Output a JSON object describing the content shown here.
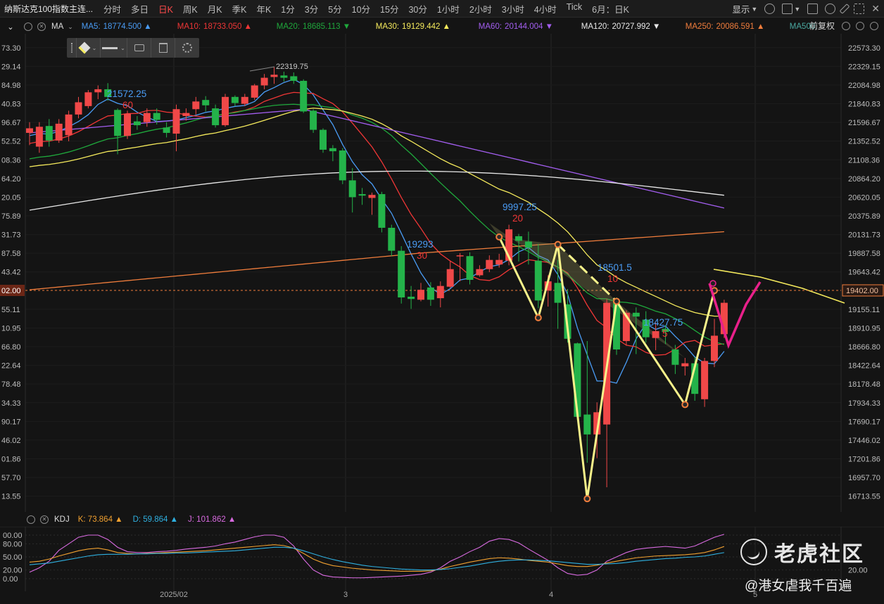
{
  "topbar": {
    "symbol": "纳斯达克100指数主连...",
    "periods": [
      "分时",
      "多日",
      "日K",
      "周K",
      "月K",
      "季K",
      "年K",
      "1分",
      "3分",
      "5分",
      "10分",
      "15分",
      "30分",
      "1小时",
      "2小时",
      "3小时",
      "4小时",
      "Tick",
      "6月：日K"
    ],
    "active_period": "日K",
    "display_label": "显示"
  },
  "ma_bar": {
    "indicator": "MA",
    "items": [
      {
        "label": "MA5:",
        "value": "18774.500",
        "arrow": "▲",
        "color": "#4a9cf5"
      },
      {
        "label": "MA10:",
        "value": "18733.050",
        "arrow": "▲",
        "color": "#ef3636"
      },
      {
        "label": "MA20:",
        "value": "18685.113",
        "arrow": "▼",
        "color": "#1fa83c"
      },
      {
        "label": "MA30:",
        "value": "19129.442",
        "arrow": "▲",
        "color": "#f5ea5c"
      },
      {
        "label": "MA60:",
        "value": "20144.004",
        "arrow": "▼",
        "color": "#a35ef0"
      },
      {
        "label": "MA120:",
        "value": "20727.992",
        "arrow": "▼",
        "color": "#e8e8e8"
      },
      {
        "label": "MA250:",
        "value": "20086.591",
        "arrow": "▲",
        "color": "#f07d3c"
      },
      {
        "label": "MA500:",
        "value": "",
        "arrow": "",
        "color": "#4aa8a0"
      }
    ],
    "adjust_label": "前复权"
  },
  "price_axis": {
    "right_labels": [
      "22573.30",
      "22329.15",
      "22084.98",
      "21840.83",
      "21596.67",
      "21352.52",
      "21108.36",
      "20864.20",
      "20620.05",
      "20375.89",
      "20131.73",
      "19887.58",
      "19643.42",
      "19155.11",
      "18910.95",
      "18666.80",
      "18422.64",
      "18178.48",
      "17934.33",
      "17690.17",
      "17446.02",
      "17201.86",
      "16957.70",
      "16713.55"
    ],
    "left_labels": [
      "73.30",
      "29.14",
      "84.98",
      "40.83",
      "96.67",
      "52.52",
      "08.36",
      "64.20",
      "20.05",
      "75.89",
      "31.73",
      "87.58",
      "43.42",
      "55.11",
      "10.95",
      "66.80",
      "22.64",
      "78.48",
      "34.33",
      "90.17",
      "46.02",
      "01.86",
      "57.70",
      "13.55"
    ],
    "current_price": "19402.00",
    "current_price_left": "02.00"
  },
  "annotations": [
    {
      "text": "22319.75",
      "color": "#c9c9c9"
    },
    {
      "text": "21572.25",
      "sub": "60",
      "color": "#4a9cf5",
      "subcolor": "#ef3636"
    },
    {
      "text": "19293",
      "sub": "30",
      "color": "#4a9cf5",
      "subcolor": "#ef3636"
    },
    {
      "text": "9997.25",
      "sub": "20",
      "color": "#4a9cf5",
      "subcolor": "#ef3636"
    },
    {
      "text": "18501.5",
      "sub": "10",
      "color": "#4a9cf5",
      "subcolor": "#ef3636"
    },
    {
      "text": "18427.75",
      "sub": "5",
      "color": "#4a9cf5",
      "subcolor": "#ef3636"
    }
  ],
  "kdj_bar": {
    "indicator": "KDJ",
    "items": [
      {
        "label": "K:",
        "value": "73.864",
        "arrow": "▲",
        "color": "#f0a030"
      },
      {
        "label": "D:",
        "value": "59.864",
        "arrow": "▲",
        "color": "#2fb0e0"
      },
      {
        "label": "J:",
        "value": "101.862",
        "arrow": "▲",
        "color": "#d86ae0"
      }
    ],
    "axis_labels": [
      "100.00",
      "80.00",
      "50.00",
      "20.00",
      "0.00"
    ],
    "axis_labels_left": [
      "00.00",
      "80.00",
      "50.00",
      "20.00",
      "0.00"
    ],
    "right_label": "20.00"
  },
  "date_labels": [
    "2025/02",
    "3",
    "4",
    "5"
  ],
  "watermark": {
    "brand": "老虎社区",
    "handle": "@港女虐我千百遍"
  },
  "chart_data": {
    "type": "candlestick",
    "title": "",
    "ylim": [
      16600,
      22700
    ],
    "candles": [
      [
        21460,
        21520,
        21300,
        21600
      ],
      [
        21280,
        21540,
        21200,
        21600
      ],
      [
        21550,
        21360,
        21280,
        21640
      ],
      [
        21360,
        21580,
        21330,
        21640
      ],
      [
        21430,
        21700,
        21350,
        21750
      ],
      [
        21700,
        21860,
        21650,
        21930
      ],
      [
        21810,
        21990,
        21780,
        22020
      ],
      [
        21990,
        22030,
        21900,
        22080
      ],
      [
        22030,
        21930,
        21880,
        22110
      ],
      [
        21760,
        21420,
        21180,
        21780
      ],
      [
        21420,
        21710,
        21380,
        21750
      ],
      [
        21610,
        21560,
        21500,
        21680
      ],
      [
        21600,
        21720,
        21540,
        21780
      ],
      [
        21720,
        21630,
        21570,
        21780
      ],
      [
        21530,
        21460,
        21400,
        21600
      ],
      [
        21450,
        21770,
        21220,
        21830
      ],
      [
        21680,
        21720,
        21620,
        21780
      ],
      [
        21770,
        21870,
        21700,
        21930
      ],
      [
        21890,
        21820,
        21740,
        21940
      ],
      [
        21780,
        21560,
        21530,
        21830
      ],
      [
        21560,
        21930,
        21540,
        21970
      ],
      [
        21930,
        21850,
        21810,
        21950
      ],
      [
        21840,
        21930,
        21810,
        21970
      ],
      [
        21920,
        22080,
        21890,
        22100
      ],
      [
        22080,
        22180,
        22030,
        22230
      ],
      [
        22190,
        22220,
        22100,
        22320
      ],
      [
        22210,
        22180,
        22130,
        22260
      ],
      [
        22200,
        22140,
        22100,
        22250
      ],
      [
        22140,
        21740,
        21720,
        22160
      ],
      [
        21750,
        21500,
        21460,
        21770
      ],
      [
        21500,
        21240,
        21200,
        21520
      ],
      [
        21260,
        21220,
        21090,
        21300
      ],
      [
        21230,
        20840,
        20790,
        21260
      ],
      [
        20840,
        20620,
        20420,
        21000
      ],
      [
        20660,
        20640,
        20520,
        20740
      ],
      [
        20610,
        20650,
        20390,
        20680
      ],
      [
        20660,
        20220,
        20160,
        20690
      ],
      [
        20220,
        19920,
        19850,
        20260
      ],
      [
        19920,
        19310,
        19230,
        19980
      ],
      [
        19320,
        19290,
        19160,
        19460
      ],
      [
        19280,
        19410,
        19260,
        19500
      ],
      [
        19440,
        19280,
        19200,
        19510
      ],
      [
        19300,
        19460,
        19180,
        19520
      ],
      [
        19450,
        19680,
        19430,
        19790
      ],
      [
        19860,
        19860,
        19520,
        19890
      ],
      [
        19850,
        19540,
        19480,
        19900
      ],
      [
        19600,
        19680,
        19580,
        19730
      ],
      [
        19680,
        19800,
        19640,
        19860
      ],
      [
        19740,
        19800,
        19700,
        19880
      ],
      [
        19790,
        20200,
        19730,
        20260
      ],
      [
        20110,
        20050,
        19780,
        20140
      ],
      [
        20040,
        19960,
        19740,
        20170
      ],
      [
        19790,
        19270,
        19170,
        20010
      ],
      [
        19400,
        19520,
        19190,
        19600
      ],
      [
        19500,
        19240,
        18900,
        19800
      ],
      [
        19220,
        18770,
        18720,
        19420
      ],
      [
        18710,
        17750,
        17700,
        18720
      ],
      [
        17780,
        17520,
        17150,
        18740
      ],
      [
        17520,
        17810,
        17210,
        17940
      ],
      [
        17650,
        19240,
        16830,
        19290
      ],
      [
        19270,
        18630,
        18560,
        19310
      ],
      [
        18740,
        19110,
        18680,
        19140
      ],
      [
        19110,
        19060,
        18570,
        19180
      ],
      [
        19020,
        18790,
        18720,
        19130
      ],
      [
        18780,
        18870,
        18620,
        18980
      ],
      [
        18900,
        18860,
        18700,
        18950
      ],
      [
        18630,
        18430,
        18310,
        18690
      ],
      [
        18410,
        18450,
        18290,
        18520
      ],
      [
        18450,
        18050,
        17960,
        18530
      ],
      [
        17980,
        18480,
        17880,
        18520
      ],
      [
        18480,
        18810,
        18400,
        19030
      ],
      [
        18830,
        19240,
        18780,
        19280
      ]
    ],
    "ma_series": [
      {
        "name": "MA5",
        "color": "#4a9cf5"
      },
      {
        "name": "MA10",
        "color": "#ef3636"
      },
      {
        "name": "MA20",
        "color": "#1fa83c"
      },
      {
        "name": "MA30",
        "color": "#f5ea5c"
      },
      {
        "name": "MA60",
        "color": "#a35ef0"
      },
      {
        "name": "MA120",
        "color": "#e8e8e8"
      },
      {
        "name": "MA250",
        "color": "#f07d3c"
      }
    ],
    "drawn_zigzag": [
      [
        20100,
        48
      ],
      [
        19045,
        52
      ],
      [
        20002,
        54
      ],
      [
        16680,
        57
      ],
      [
        19260,
        60
      ],
      [
        17910,
        67
      ],
      [
        19400,
        70
      ]
    ],
    "drawn_projection": [
      [
        19402,
        70
      ],
      [
        19150,
        72
      ],
      [
        19880,
        74
      ]
    ],
    "kdj": {
      "K": [
        38,
        40,
        45,
        52,
        58,
        64,
        68,
        70,
        66,
        60,
        58,
        57,
        58,
        59,
        60,
        61,
        62,
        63,
        64,
        66,
        68,
        70,
        72,
        74,
        76,
        78,
        76,
        70,
        58,
        45,
        36,
        30,
        27,
        24,
        22,
        20,
        19,
        18,
        17,
        17,
        17,
        18,
        22,
        28,
        33,
        38,
        42,
        46,
        48,
        47,
        45,
        42,
        40,
        38,
        34,
        30,
        28,
        28,
        31,
        36,
        40,
        44,
        48,
        50,
        52,
        53,
        54,
        55,
        57,
        60,
        66,
        73.864
      ],
      "D": [
        32,
        34,
        36,
        40,
        44,
        48,
        52,
        55,
        56,
        56,
        56,
        57,
        57,
        58,
        58,
        59,
        59,
        60,
        61,
        62,
        63,
        64,
        66,
        68,
        70,
        72,
        72,
        70,
        64,
        57,
        50,
        44,
        39,
        35,
        31,
        28,
        26,
        24,
        22,
        21,
        20,
        20,
        21,
        23,
        26,
        29,
        33,
        37,
        40,
        42,
        43,
        43,
        42,
        41,
        39,
        37,
        35,
        33,
        33,
        34,
        35,
        37,
        40,
        42,
        44,
        46,
        47,
        49,
        50,
        52,
        56,
        59.864
      ],
      "J": [
        15,
        25,
        40,
        65,
        80,
        95,
        100,
        100,
        90,
        72,
        62,
        60,
        60,
        62,
        63,
        65,
        68,
        70,
        72,
        75,
        80,
        84,
        90,
        96,
        100,
        100,
        95,
        75,
        45,
        20,
        8,
        4,
        3,
        2,
        2,
        3,
        4,
        5,
        6,
        8,
        10,
        15,
        25,
        40,
        50,
        62,
        72,
        86,
        92,
        90,
        82,
        68,
        55,
        42,
        25,
        12,
        8,
        10,
        20,
        40,
        50,
        60,
        67,
        70,
        72,
        74,
        72,
        70,
        75,
        85,
        95,
        101.862
      ]
    }
  }
}
